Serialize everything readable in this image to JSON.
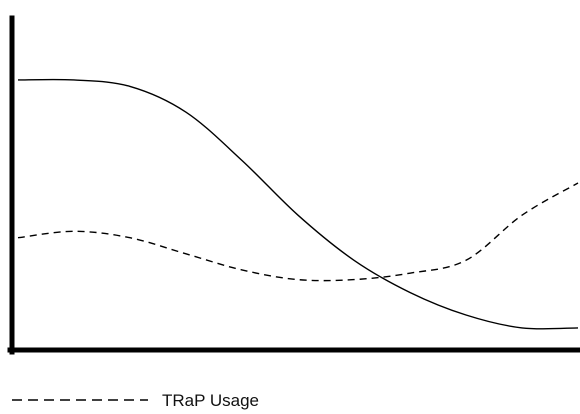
{
  "chart_data": {
    "type": "line",
    "title": "",
    "xlabel": "",
    "ylabel": "",
    "xlim": [
      0,
      10
    ],
    "ylim": [
      0,
      10
    ],
    "grid": false,
    "legend_position": "bottom-left",
    "series": [
      {
        "line_style": "solid",
        "color": "#000000",
        "x": [
          0,
          1,
          2,
          3,
          4,
          5,
          6,
          7,
          8,
          9,
          10
        ],
        "y": [
          8.2,
          8.2,
          8.0,
          7.2,
          5.7,
          4.0,
          2.6,
          1.6,
          0.9,
          0.5,
          0.5
        ]
      },
      {
        "name": "TRaP Usage",
        "line_style": "dashed",
        "color": "#000000",
        "x": [
          0,
          1,
          2,
          3,
          4,
          5,
          6,
          7,
          8,
          9,
          10
        ],
        "y": [
          3.3,
          3.5,
          3.3,
          2.8,
          2.3,
          2.0,
          2.0,
          2.2,
          2.6,
          4.0,
          5.0
        ]
      }
    ]
  }
}
